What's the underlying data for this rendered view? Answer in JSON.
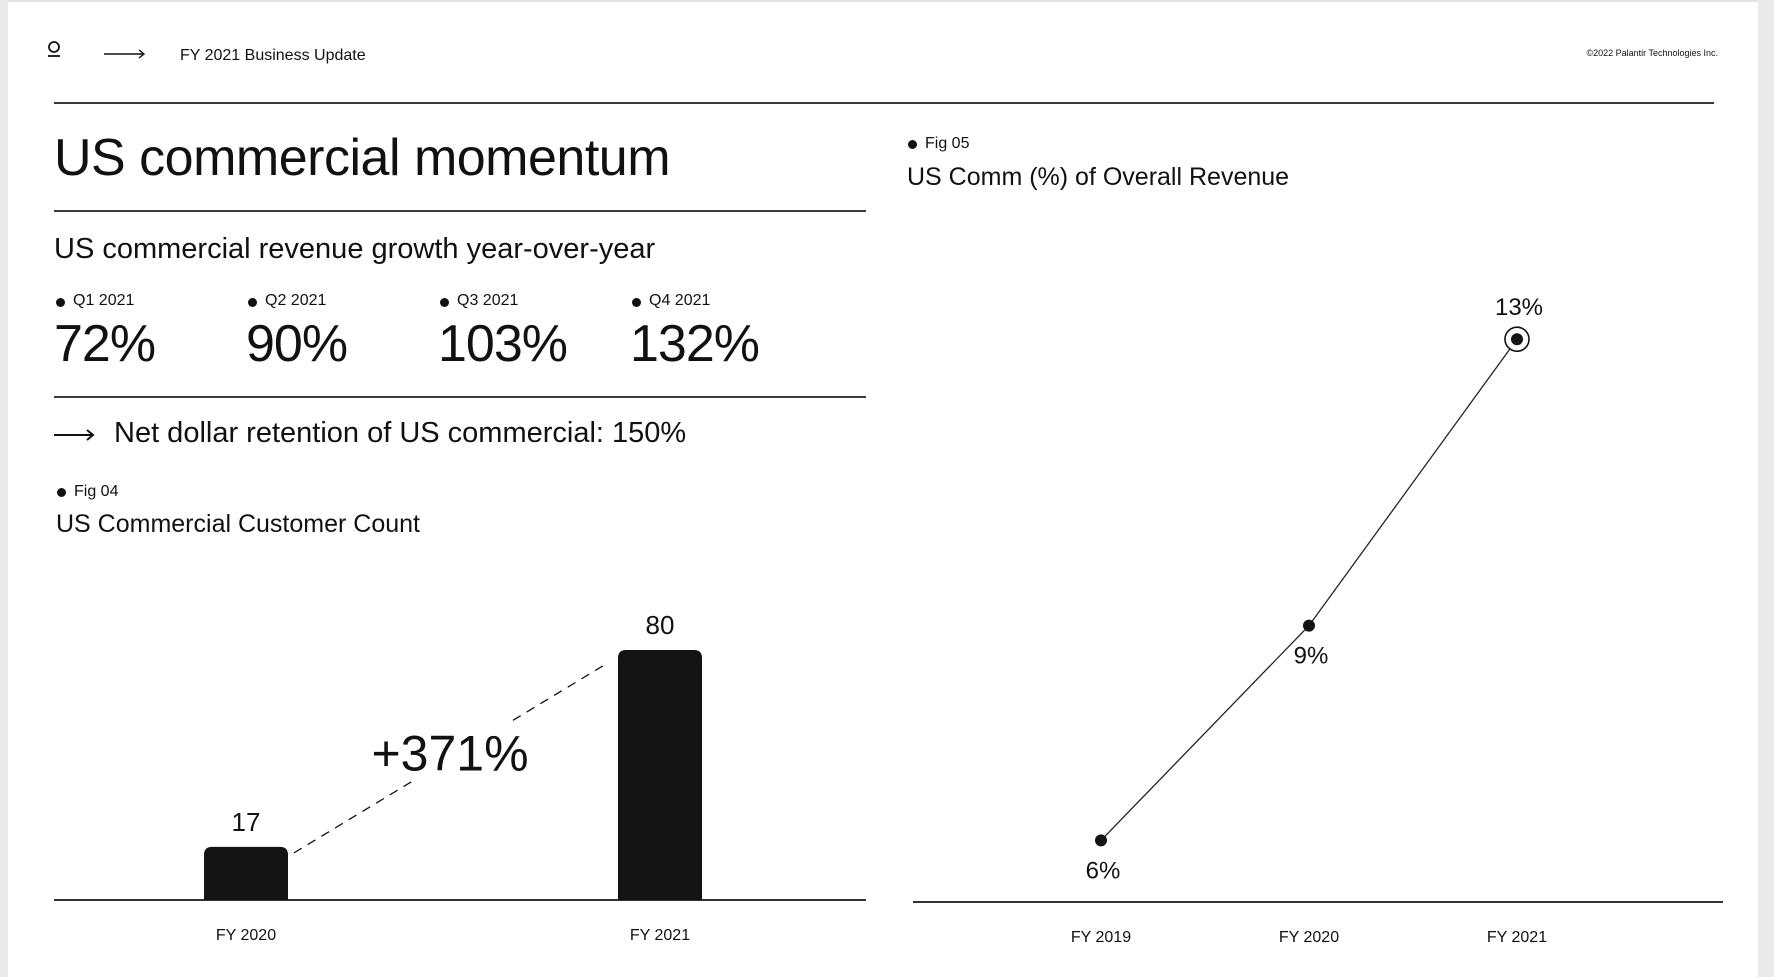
{
  "header": {
    "logo_icon": "palantir-logo-icon",
    "arrow_icon": "long-arrow-right-icon",
    "breadcrumb": "FY 2021 Business Update",
    "copyright": "©2022 Palantir Technologies Inc."
  },
  "title": "US commercial momentum",
  "growth": {
    "heading": "US commercial revenue growth year-over-year",
    "items": [
      {
        "label": "Q1 2021",
        "value": "72%"
      },
      {
        "label": "Q2 2021",
        "value": "90%"
      },
      {
        "label": "Q3 2021",
        "value": "103%"
      },
      {
        "label": "Q4 2021",
        "value": "132%"
      }
    ]
  },
  "ndr": {
    "arrow_icon": "long-arrow-right-icon",
    "text": "Net dollar retention of US commercial: 150%"
  },
  "chart_data": [
    {
      "fig": "Fig 04",
      "type": "bar",
      "title": "US Commercial Customer Count",
      "categories": [
        "FY 2020",
        "FY 2021"
      ],
      "values": [
        17,
        80
      ],
      "value_labels": [
        "17",
        "80"
      ],
      "annotation": "+371%",
      "ylim": [
        0,
        80
      ],
      "color": "#141414"
    },
    {
      "fig": "Fig 05",
      "type": "line",
      "title": "US Comm (%) of Overall Revenue",
      "categories": [
        "FY 2019",
        "FY 2020",
        "FY 2021"
      ],
      "values": [
        6,
        9,
        13
      ],
      "value_labels": [
        "6%",
        "9%",
        "13%"
      ],
      "ylim": [
        0,
        14
      ],
      "color": "#141414"
    }
  ]
}
